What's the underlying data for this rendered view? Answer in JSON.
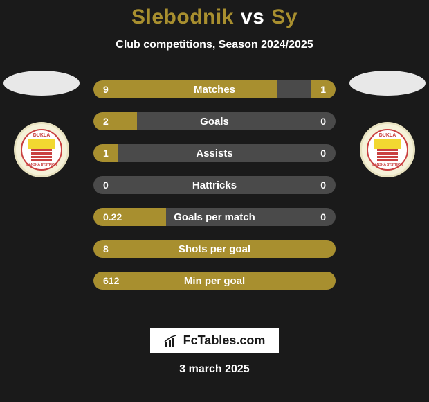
{
  "title": {
    "player1": "Slebodnik",
    "vs": "vs",
    "player2": "Sy"
  },
  "subtitle": "Club competitions, Season 2024/2025",
  "club_badge": {
    "top_text": "DUKLA",
    "bottom_text": "BANSKÁ BYSTRICA",
    "ring_bg": "#f5f1d8",
    "ring_border": "#e8e2c0",
    "inner_bg": "#ffffff",
    "accent": "#c94040",
    "yellow": "#f2d831"
  },
  "bars": [
    {
      "label": "Matches",
      "left_val": "9",
      "right_val": "1",
      "left_fill_pct": 76,
      "right_fill_pct": 10
    },
    {
      "label": "Goals",
      "left_val": "2",
      "right_val": "0",
      "left_fill_pct": 18,
      "right_fill_pct": 0
    },
    {
      "label": "Assists",
      "left_val": "1",
      "right_val": "0",
      "left_fill_pct": 10,
      "right_fill_pct": 0
    },
    {
      "label": "Hattricks",
      "left_val": "0",
      "right_val": "0",
      "left_fill_pct": 0,
      "right_fill_pct": 0
    },
    {
      "label": "Goals per match",
      "left_val": "0.22",
      "right_val": "0",
      "left_fill_pct": 30,
      "right_fill_pct": 0
    },
    {
      "label": "Shots per goal",
      "left_val": "8",
      "right_val": "",
      "left_fill_pct": 100,
      "right_fill_pct": 0
    },
    {
      "label": "Min per goal",
      "left_val": "612",
      "right_val": "",
      "left_fill_pct": 100,
      "right_fill_pct": 0
    }
  ],
  "colors": {
    "bg": "#1a1a1a",
    "bar_bg": "#4a4a4a",
    "bar_fill": "#a88f2f",
    "text": "#ffffff"
  },
  "brand": {
    "text": "FcTables.com"
  },
  "date": "3 march 2025"
}
